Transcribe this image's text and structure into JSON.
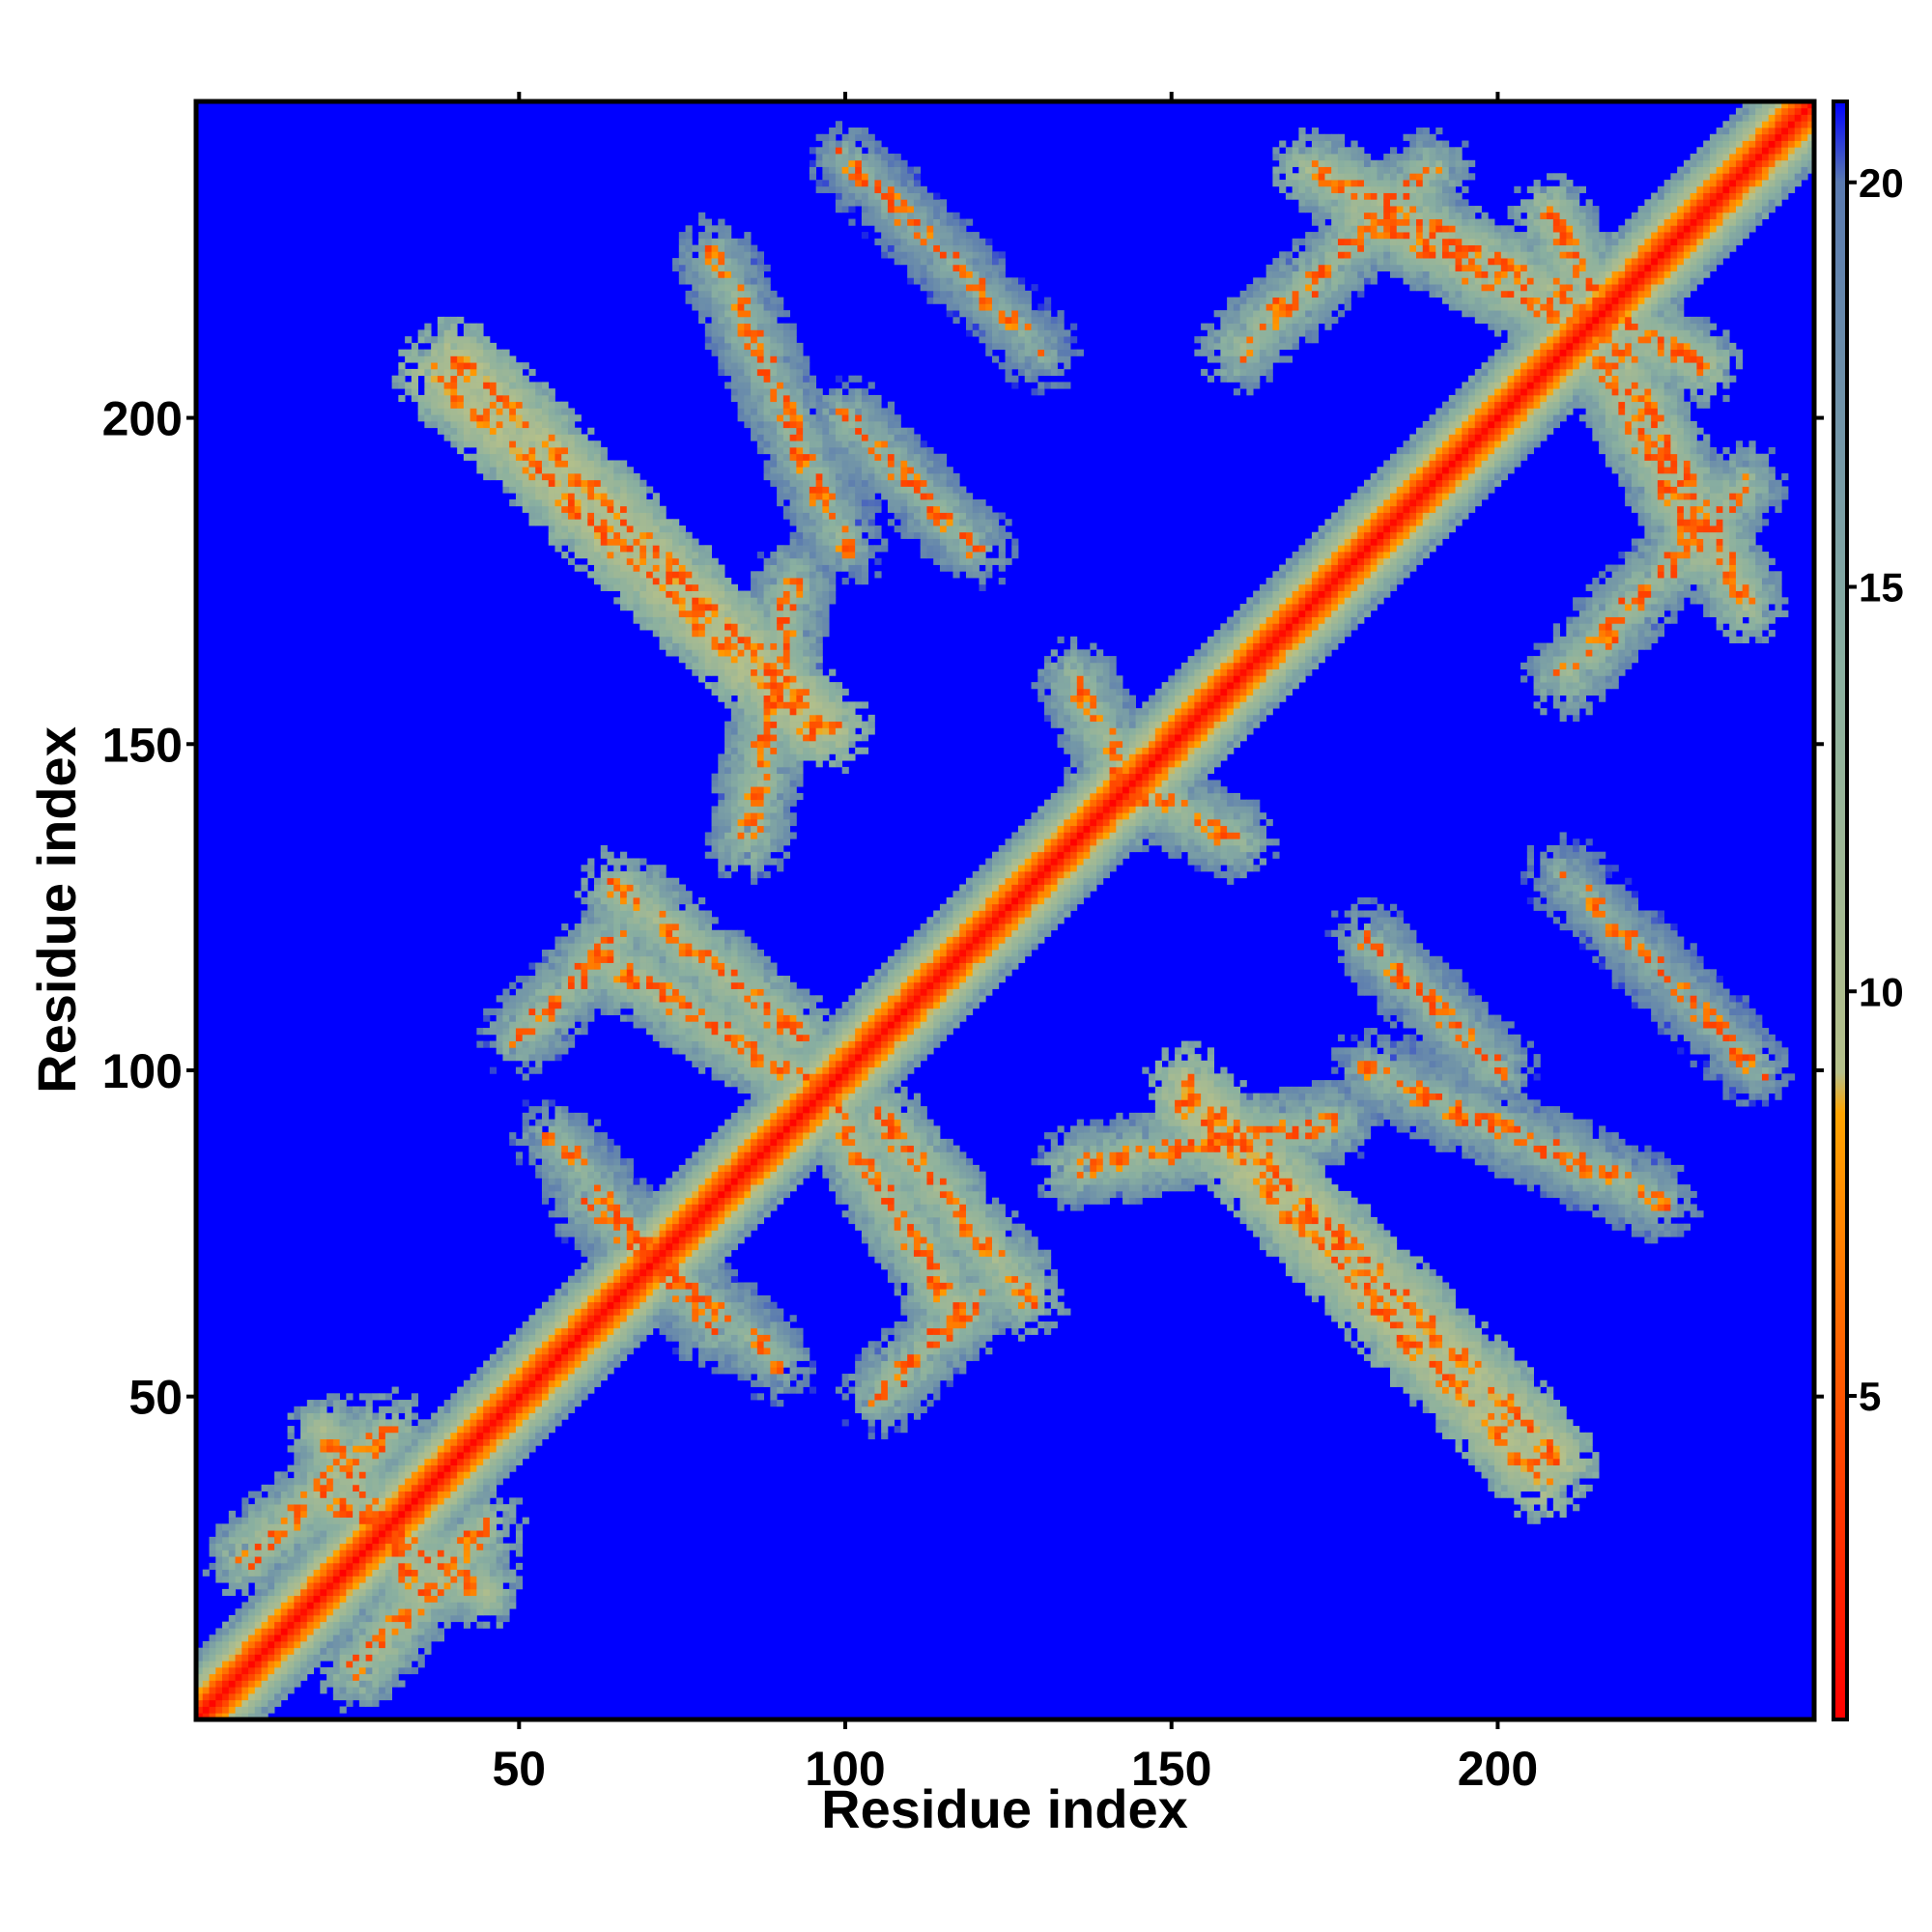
{
  "chart_data": {
    "type": "heatmap",
    "title": "",
    "xlabel": "Residue index",
    "ylabel": "Residue index",
    "xlim": [
      1,
      248
    ],
    "ylim": [
      1,
      248
    ],
    "x_ticks": [
      50,
      100,
      150,
      200
    ],
    "y_ticks": [
      50,
      100,
      150,
      200
    ],
    "colorbar": {
      "range": [
        1,
        21
      ],
      "ticks": [
        5,
        10,
        15,
        20
      ],
      "gradient": [
        {
          "value": 1,
          "color": "#ff0000"
        },
        {
          "value": 5,
          "color": "#ff5500"
        },
        {
          "value": 8.5,
          "color": "#ffa500"
        },
        {
          "value": 9,
          "color": "#b5c08a"
        },
        {
          "value": 14,
          "color": "#8ab0a0"
        },
        {
          "value": 20,
          "color": "#5a7ab0"
        },
        {
          "value": 21,
          "color": "#0000ff"
        }
      ]
    },
    "background_value": 21,
    "diagonal": {
      "value_on_diagonal": 1,
      "half_width_residues": 10
    },
    "contact_bands": [
      {
        "from": [
          37,
          207
        ],
        "to": [
          95,
          152
        ],
        "typical_value": 9
      },
      {
        "from": [
          208,
          232
        ],
        "to": [
          238,
          171
        ],
        "typical_value": 11
      },
      {
        "from": [
          178,
          232
        ],
        "to": [
          212,
          214
        ],
        "typical_value": 11
      },
      {
        "from": [
          210,
          160
        ],
        "to": [
          238,
          190
        ],
        "typical_value": 12
      },
      {
        "from": [
          152,
          98
        ],
        "to": [
          210,
          40
        ],
        "typical_value": 9
      },
      {
        "from": [
          105,
          93
        ],
        "to": [
          128,
          65
        ],
        "typical_value": 11
      },
      {
        "from": [
          62,
          118
        ],
        "to": [
          98,
          95
        ],
        "typical_value": 11
      },
      {
        "from": [
          50,
          105
        ],
        "to": [
          65,
          120
        ],
        "typical_value": 12
      },
      {
        "from": [
          8,
          25
        ],
        "to": [
          30,
          45
        ],
        "typical_value": 11
      },
      {
        "from": [
          20,
          35
        ],
        "to": [
          45,
          20
        ],
        "typical_value": 11
      },
      {
        "from": [
          180,
          100
        ],
        "to": [
          225,
          80
        ],
        "typical_value": 13
      },
      {
        "from": [
          180,
          120
        ],
        "to": [
          200,
          100
        ],
        "typical_value": 13
      },
      {
        "from": [
          135,
          85
        ],
        "to": [
          175,
          92
        ],
        "typical_value": 12
      },
      {
        "from": [
          55,
          90
        ],
        "to": [
          80,
          60
        ],
        "typical_value": 13
      },
      {
        "from": [
          140,
          145
        ],
        "to": [
          160,
          135
        ],
        "typical_value": 12
      },
      {
        "from": [
          100,
          240
        ],
        "to": [
          130,
          210
        ],
        "typical_value": 14
      }
    ]
  }
}
